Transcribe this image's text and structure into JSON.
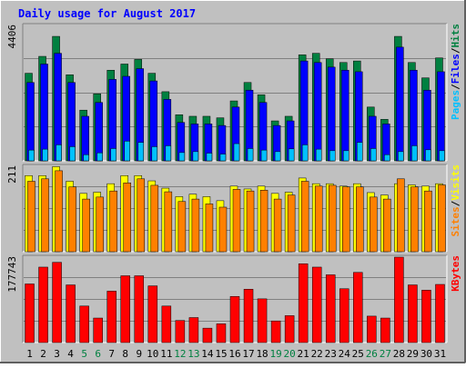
{
  "title": "Daily usage for August 2017",
  "colors": {
    "background": "#c0c0c0",
    "title": "#0000ff",
    "hits": "#008040",
    "files": "#0000ff",
    "pages": "#00c0ff",
    "visits": "#ffff00",
    "sites": "#ff8000",
    "kbytes": "#ff0000",
    "weekend_label": "#008040",
    "weekday_label": "#000000"
  },
  "chart_data": [
    {
      "type": "bar",
      "name": "hits-files-pages",
      "ymax_label": "4406",
      "ylim": [
        0,
        4406
      ],
      "legend": [
        "Pages",
        "/",
        "Files",
        "/",
        "Hits"
      ],
      "categories": [
        "1",
        "2",
        "3",
        "4",
        "5",
        "6",
        "7",
        "8",
        "9",
        "10",
        "11",
        "12",
        "13",
        "14",
        "15",
        "16",
        "17",
        "18",
        "19",
        "20",
        "21",
        "22",
        "23",
        "24",
        "25",
        "26",
        "27",
        "28",
        "29",
        "30",
        "31"
      ],
      "series": [
        {
          "name": "Hits",
          "values": [
            2850,
            3400,
            4050,
            2800,
            1650,
            2180,
            2950,
            3150,
            3300,
            2850,
            2250,
            1500,
            1450,
            1450,
            1400,
            1950,
            2550,
            2150,
            1300,
            1450,
            3450,
            3500,
            3320,
            3200,
            3250,
            1750,
            1350,
            4050,
            3200,
            2700,
            3350
          ]
        },
        {
          "name": "Files",
          "values": [
            2550,
            3150,
            3500,
            2550,
            1450,
            1900,
            2650,
            2750,
            3000,
            2600,
            2000,
            1250,
            1200,
            1200,
            1150,
            1750,
            2300,
            1900,
            1150,
            1300,
            3250,
            3200,
            3050,
            2950,
            2900,
            1450,
            1200,
            3700,
            2950,
            2300,
            2900
          ]
        },
        {
          "name": "Pages",
          "values": [
            350,
            380,
            520,
            460,
            200,
            260,
            400,
            640,
            600,
            460,
            490,
            270,
            300,
            250,
            220,
            560,
            400,
            350,
            300,
            390,
            520,
            380,
            330,
            330,
            600,
            400,
            200,
            300,
            490,
            360,
            330
          ]
        }
      ]
    },
    {
      "type": "bar",
      "name": "visits-sites",
      "ymax_label": "211",
      "ylim": [
        0,
        211
      ],
      "legend": [
        "Sites",
        "/",
        "Visits"
      ],
      "categories": [
        "1",
        "2",
        "3",
        "4",
        "5",
        "6",
        "7",
        "8",
        "9",
        "10",
        "11",
        "12",
        "13",
        "14",
        "15",
        "16",
        "17",
        "18",
        "19",
        "20",
        "21",
        "22",
        "23",
        "24",
        "25",
        "26",
        "27",
        "28",
        "29",
        "30",
        "31"
      ],
      "series": [
        {
          "name": "Visits",
          "values": [
            188,
            188,
            210,
            174,
            144,
            147,
            168,
            188,
            188,
            175,
            157,
            136,
            142,
            136,
            126,
            162,
            155,
            162,
            144,
            147,
            182,
            168,
            168,
            162,
            168,
            146,
            140,
            168,
            165,
            162,
            168
          ]
        },
        {
          "name": "Sites",
          "values": [
            174,
            180,
            200,
            160,
            130,
            135,
            150,
            170,
            180,
            164,
            148,
            124,
            130,
            118,
            110,
            154,
            150,
            152,
            130,
            140,
            174,
            162,
            164,
            160,
            160,
            135,
            130,
            180,
            160,
            150,
            165
          ]
        }
      ]
    },
    {
      "type": "bar",
      "name": "kbytes",
      "ymax_label": "177743",
      "ylim": [
        0,
        177743
      ],
      "legend": [
        "KBytes"
      ],
      "categories": [
        "1",
        "2",
        "3",
        "4",
        "5",
        "6",
        "7",
        "8",
        "9",
        "10",
        "11",
        "12",
        "13",
        "14",
        "15",
        "16",
        "17",
        "18",
        "19",
        "20",
        "21",
        "22",
        "23",
        "24",
        "25",
        "26",
        "27",
        "28",
        "29",
        "30",
        "31"
      ],
      "series": [
        {
          "name": "KBytes",
          "values": [
            122000,
            157000,
            167000,
            120000,
            76000,
            51000,
            107000,
            139000,
            139000,
            118000,
            76000,
            46000,
            52000,
            30000,
            39000,
            96000,
            111000,
            91000,
            45000,
            56000,
            164000,
            157000,
            141000,
            112000,
            146000,
            55000,
            51000,
            177743,
            120000,
            109000,
            121000
          ]
        }
      ]
    }
  ],
  "x_axis": {
    "labels": [
      "1",
      "2",
      "3",
      "4",
      "5",
      "6",
      "7",
      "8",
      "9",
      "10",
      "11",
      "12",
      "13",
      "14",
      "15",
      "16",
      "17",
      "18",
      "19",
      "20",
      "21",
      "22",
      "23",
      "24",
      "25",
      "26",
      "27",
      "28",
      "29",
      "30",
      "31"
    ],
    "weekend": [
      5,
      6,
      12,
      13,
      19,
      20,
      26,
      27
    ]
  }
}
